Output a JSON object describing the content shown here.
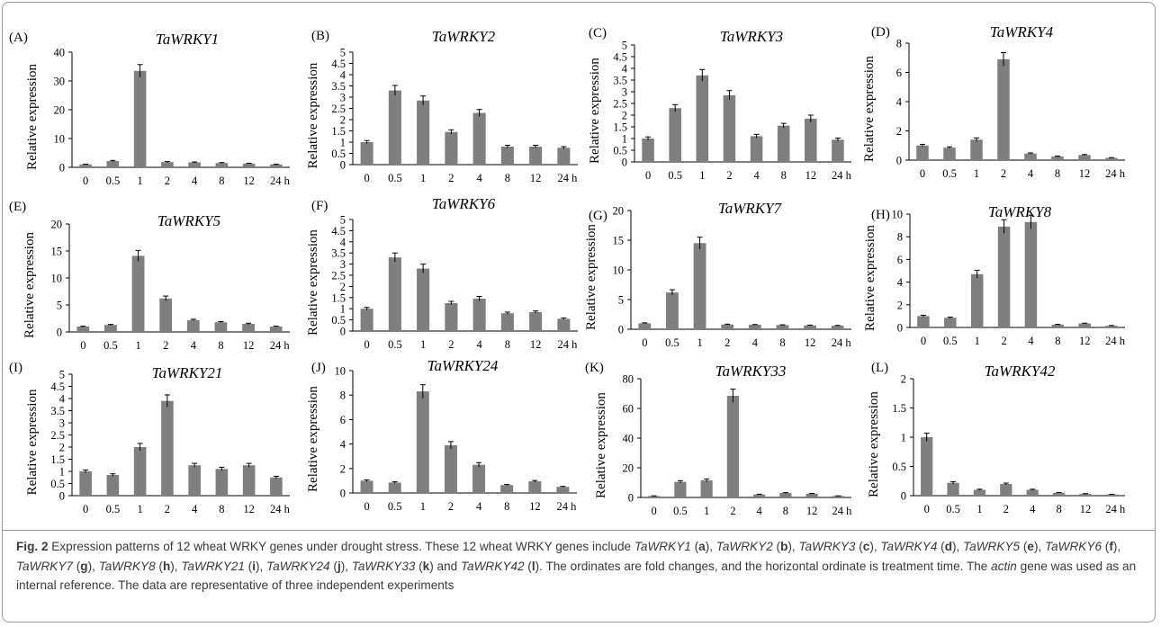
{
  "caption": {
    "label": "Fig. 2",
    "parts": [
      {
        "t": " Expression patterns of 12 wheat WRKY genes under drought stress. These 12 wheat WRKY genes include "
      },
      {
        "t": "TaWRKY1",
        "i": true
      },
      {
        "t": " ("
      },
      {
        "t": "a",
        "b": true
      },
      {
        "t": "), "
      },
      {
        "t": "TaWRKY2",
        "i": true
      },
      {
        "t": " ("
      },
      {
        "t": "b",
        "b": true
      },
      {
        "t": "), "
      },
      {
        "t": "TaWRKY3",
        "i": true
      },
      {
        "t": " ("
      },
      {
        "t": "c",
        "b": true
      },
      {
        "t": "), "
      },
      {
        "t": "TaWRKY4",
        "i": true
      },
      {
        "t": " ("
      },
      {
        "t": "d",
        "b": true
      },
      {
        "t": "), "
      },
      {
        "t": "TaWRKY5",
        "i": true
      },
      {
        "t": " ("
      },
      {
        "t": "e",
        "b": true
      },
      {
        "t": "), "
      },
      {
        "t": "TaWRKY6",
        "i": true
      },
      {
        "t": " ("
      },
      {
        "t": "f",
        "b": true
      },
      {
        "t": "), "
      },
      {
        "t": "TaWRKY7",
        "i": true
      },
      {
        "t": " ("
      },
      {
        "t": "g",
        "b": true
      },
      {
        "t": "), "
      },
      {
        "t": "TaWRKY8",
        "i": true
      },
      {
        "t": " ("
      },
      {
        "t": "h",
        "b": true
      },
      {
        "t": "), "
      },
      {
        "t": "TaWRKY21",
        "i": true
      },
      {
        "t": " ("
      },
      {
        "t": "i",
        "b": true
      },
      {
        "t": "), "
      },
      {
        "t": "TaWRKY24",
        "i": true
      },
      {
        "t": " ("
      },
      {
        "t": "j",
        "b": true
      },
      {
        "t": "), "
      },
      {
        "t": "TaWRKY33",
        "i": true
      },
      {
        "t": " ("
      },
      {
        "t": "k",
        "b": true
      },
      {
        "t": ") and "
      },
      {
        "t": "TaWRKY42",
        "i": true
      },
      {
        "t": " ("
      },
      {
        "t": "l",
        "b": true
      },
      {
        "t": "). The ordinates are fold changes, and the horizontal ordinate is treatment time. The "
      },
      {
        "t": "actin",
        "i": true
      },
      {
        "t": " gene was used as an internal reference. The data are representative of three independent experiments"
      }
    ]
  },
  "bar_color": "#7f7f7f",
  "chart_data": [
    {
      "type": "bar",
      "panel": "(A)",
      "title": "TaWRKY1",
      "ylabel": "Relative expression",
      "categories": [
        "0",
        "0.5",
        "1",
        "2",
        "4",
        "8",
        "12",
        "24 h"
      ],
      "ylim": [
        0,
        40
      ],
      "yticks": [
        0,
        10,
        20,
        30,
        40
      ],
      "values": [
        1.0,
        2.2,
        33.5,
        1.8,
        1.7,
        1.5,
        1.3,
        1.0
      ],
      "errors": [
        0.1,
        0.2,
        2.2,
        0.2,
        0.15,
        0.15,
        0.1,
        0.1
      ]
    },
    {
      "type": "bar",
      "panel": "(B)",
      "title": "TaWRKY2",
      "ylabel": "Relative expression",
      "categories": [
        "0",
        "0.5",
        "1",
        "2",
        "4",
        "8",
        "12",
        "24 h"
      ],
      "ylim": [
        0,
        5
      ],
      "yticks": [
        0,
        0.5,
        1,
        1.5,
        2,
        2.5,
        3,
        3.5,
        4,
        4.5,
        5
      ],
      "values": [
        1.0,
        3.3,
        2.85,
        1.45,
        2.3,
        0.8,
        0.8,
        0.75
      ],
      "errors": [
        0.07,
        0.22,
        0.2,
        0.1,
        0.15,
        0.06,
        0.06,
        0.05
      ]
    },
    {
      "type": "bar",
      "panel": "(C)",
      "title": "TaWRKY3",
      "ylabel": "Relative expression",
      "categories": [
        "0",
        "0.5",
        "1",
        "2",
        "4",
        "8",
        "12",
        "24 h"
      ],
      "ylim": [
        0,
        5
      ],
      "yticks": [
        0,
        0.5,
        1,
        1.5,
        2,
        2.5,
        3,
        3.5,
        4,
        4.5,
        5
      ],
      "values": [
        1.0,
        2.3,
        3.7,
        2.85,
        1.1,
        1.55,
        1.85,
        0.95
      ],
      "errors": [
        0.07,
        0.15,
        0.25,
        0.2,
        0.08,
        0.1,
        0.15,
        0.07
      ]
    },
    {
      "type": "bar",
      "panel": "(D)",
      "title": "TaWRKY4",
      "ylabel": "Relative expression",
      "categories": [
        "0",
        "0.5",
        "1",
        "2",
        "4",
        "8",
        "12",
        "24 h"
      ],
      "ylim": [
        0,
        8
      ],
      "yticks": [
        0,
        2,
        4,
        6,
        8
      ],
      "values": [
        1.0,
        0.85,
        1.4,
        6.9,
        0.45,
        0.25,
        0.35,
        0.15
      ],
      "errors": [
        0.08,
        0.06,
        0.12,
        0.45,
        0.04,
        0.03,
        0.03,
        0.02
      ]
    },
    {
      "type": "bar",
      "panel": "(E)",
      "title": "TaWRKY5",
      "ylabel": "Relative expression",
      "categories": [
        "0",
        "0.5",
        "1",
        "2",
        "4",
        "8",
        "12",
        "24 h"
      ],
      "ylim": [
        0,
        20
      ],
      "yticks": [
        0,
        5,
        10,
        15,
        20
      ],
      "values": [
        1.0,
        1.3,
        14.1,
        6.2,
        2.2,
        1.8,
        1.5,
        1.0
      ],
      "errors": [
        0.08,
        0.1,
        1.0,
        0.45,
        0.15,
        0.12,
        0.12,
        0.08
      ]
    },
    {
      "type": "bar",
      "panel": "(F)",
      "title": "TaWRKY6",
      "ylabel": "Relative expression",
      "categories": [
        "0",
        "0.5",
        "1",
        "2",
        "4",
        "8",
        "12",
        "24 h"
      ],
      "ylim": [
        0,
        5
      ],
      "yticks": [
        0,
        0.5,
        1,
        1.5,
        2,
        2.5,
        3,
        3.5,
        4,
        4.5,
        5
      ],
      "values": [
        1.0,
        3.3,
        2.8,
        1.25,
        1.45,
        0.8,
        0.85,
        0.55
      ],
      "errors": [
        0.06,
        0.2,
        0.2,
        0.08,
        0.1,
        0.05,
        0.05,
        0.04
      ]
    },
    {
      "type": "bar",
      "panel": "(G)",
      "title": "TaWRKY7",
      "ylabel": "Relative expression",
      "categories": [
        "0",
        "0.5",
        "1",
        "2",
        "4",
        "8",
        "12",
        "24 h"
      ],
      "ylim": [
        0,
        20
      ],
      "yticks": [
        0,
        5,
        10,
        15,
        20
      ],
      "values": [
        1.0,
        6.2,
        14.5,
        0.8,
        0.75,
        0.7,
        0.65,
        0.6
      ],
      "errors": [
        0.08,
        0.45,
        1.0,
        0.06,
        0.05,
        0.05,
        0.05,
        0.05
      ]
    },
    {
      "type": "bar",
      "panel": "(H)",
      "title": "TaWRKY8",
      "ylabel": "Relative expression",
      "categories": [
        "0",
        "0.5",
        "1",
        "2",
        "4",
        "8",
        "12",
        "24 h"
      ],
      "ylim": [
        0,
        10
      ],
      "yticks": [
        0,
        2,
        4,
        6,
        8,
        10
      ],
      "values": [
        1.0,
        0.85,
        4.7,
        8.9,
        9.3,
        0.25,
        0.35,
        0.15
      ],
      "errors": [
        0.08,
        0.06,
        0.35,
        0.6,
        0.6,
        0.03,
        0.03,
        0.02
      ]
    },
    {
      "type": "bar",
      "panel": "(I)",
      "title": "TaWRKY21",
      "ylabel": "Relative expression",
      "categories": [
        "0",
        "0.5",
        "1",
        "2",
        "4",
        "8",
        "12",
        "24 h"
      ],
      "ylim": [
        0,
        5
      ],
      "yticks": [
        0,
        0.5,
        1,
        1.5,
        2,
        2.5,
        3,
        3.5,
        4,
        4.5,
        5
      ],
      "values": [
        1.0,
        0.85,
        2.0,
        3.9,
        1.25,
        1.1,
        1.25,
        0.75
      ],
      "errors": [
        0.06,
        0.05,
        0.15,
        0.25,
        0.08,
        0.07,
        0.08,
        0.05
      ]
    },
    {
      "type": "bar",
      "panel": "(J)",
      "title": "TaWRKY24",
      "ylabel": "Relative expression",
      "categories": [
        "0",
        "0.5",
        "1",
        "2",
        "4",
        "8",
        "12",
        "24 h"
      ],
      "ylim": [
        0,
        10
      ],
      "yticks": [
        0,
        2,
        4,
        6,
        8,
        10
      ],
      "values": [
        1.0,
        0.85,
        8.3,
        3.9,
        2.3,
        0.65,
        0.95,
        0.5
      ],
      "errors": [
        0.07,
        0.06,
        0.55,
        0.3,
        0.18,
        0.05,
        0.07,
        0.04
      ]
    },
    {
      "type": "bar",
      "panel": "(K)",
      "title": "TaWRKY33",
      "ylabel": "Relative expression",
      "categories": [
        "0",
        "0.5",
        "1",
        "2",
        "4",
        "8",
        "12",
        "24 h"
      ],
      "ylim": [
        0,
        80
      ],
      "yticks": [
        0,
        20,
        40,
        60,
        80
      ],
      "values": [
        1.0,
        10.5,
        11.5,
        68.5,
        2.0,
        3.0,
        2.5,
        1.0
      ],
      "errors": [
        0.1,
        0.8,
        0.9,
        4.5,
        0.2,
        0.25,
        0.2,
        0.1
      ]
    },
    {
      "type": "bar",
      "panel": "(L)",
      "title": "TaWRKY42",
      "ylabel": "Relative expression",
      "categories": [
        "0",
        "0.5",
        "1",
        "2",
        "4",
        "8",
        "12",
        "24 h"
      ],
      "ylim": [
        0,
        2
      ],
      "yticks": [
        0,
        0.5,
        1,
        1.5,
        2
      ],
      "values": [
        1.0,
        0.22,
        0.1,
        0.2,
        0.1,
        0.05,
        0.03,
        0.02
      ],
      "errors": [
        0.07,
        0.02,
        0.01,
        0.015,
        0.01,
        0.005,
        0.005,
        0.003
      ]
    }
  ]
}
